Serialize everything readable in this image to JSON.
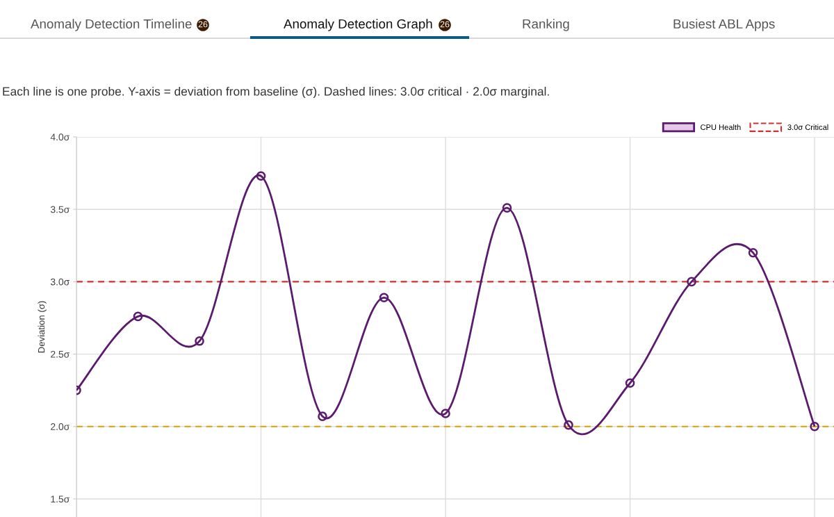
{
  "chart_data": {
    "type": "line",
    "subtitle": "Each line is one probe. Y-axis = deviation from baseline (σ). Dashed lines: 3.0σ critical · 2.0σ marginal.",
    "annotations": [
      "Anomaly Detection Timeline",
      "26",
      "Anomaly Detection Graph",
      "26",
      "Ranking",
      "Busiest ABL Apps"
    ],
    "ylabel": "Deviation (σ)",
    "categories": [
      null,
      null,
      null,
      null,
      null,
      null,
      null,
      null,
      null,
      null,
      null,
      null,
      null
    ],
    "series": [
      {
        "name": "CPU Health",
        "color": "#5b1a6e",
        "values": [
          2.25,
          2.76,
          2.59,
          3.73,
          2.07,
          2.89,
          2.09,
          3.51,
          2.01,
          2.3,
          3.0,
          3.2,
          2.0
        ]
      }
    ],
    "ylim": [
      1.375,
      4.0
    ],
    "yticks": [
      {
        "value": 1.5,
        "label": "1.5σ"
      },
      {
        "value": 2.0,
        "label": "2.0σ"
      },
      {
        "value": 2.5,
        "label": "2.5σ"
      },
      {
        "value": 3.0,
        "label": "3.0σ"
      },
      {
        "value": 3.5,
        "label": "3.5σ"
      },
      {
        "value": 4.0,
        "label": "4.0σ"
      }
    ],
    "ref_lines": [
      {
        "axis": "y",
        "value": 3.0,
        "label": "3.0σ Critical",
        "color": "#d0312d",
        "line_style": "dashed"
      },
      {
        "axis": "y",
        "value": 2.0,
        "label": null,
        "color": "#e0a000",
        "line_style": "dashed"
      }
    ],
    "grid": true,
    "legend": "top right",
    "marker": "circle",
    "line_style": "solid",
    "tick_labels": "y"
  }
}
